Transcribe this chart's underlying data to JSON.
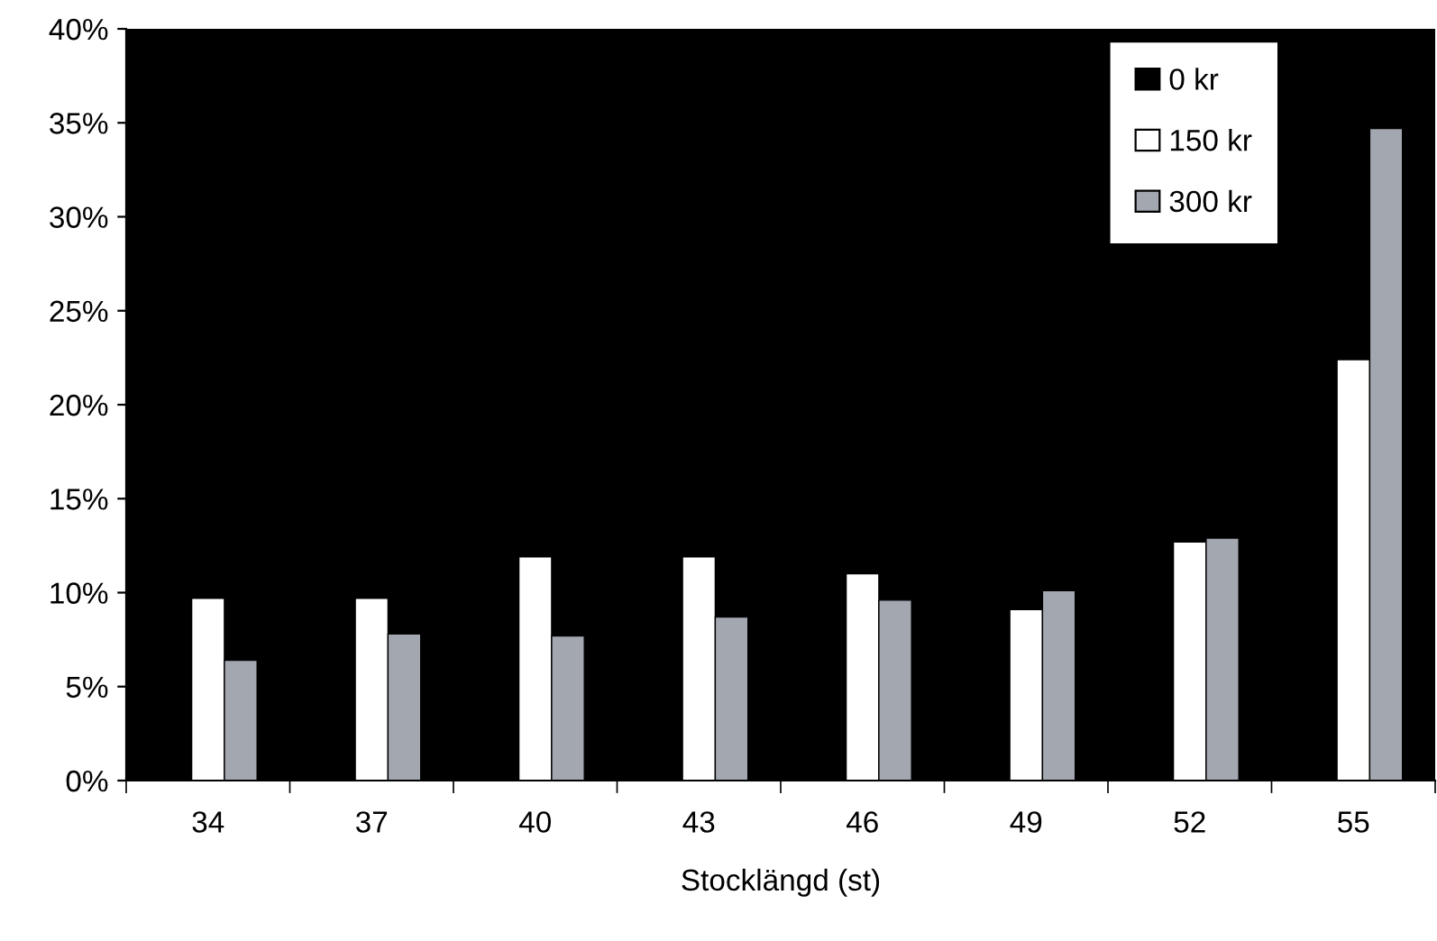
{
  "chart_data": {
    "type": "bar",
    "xlabel": "Stocklängd (st)",
    "categories": [
      "34",
      "37",
      "40",
      "43",
      "46",
      "49",
      "52",
      "55"
    ],
    "series": [
      {
        "name": "0 kr",
        "color": "#000000",
        "values": [
          null,
          null,
          null,
          null,
          null,
          null,
          null,
          null
        ]
      },
      {
        "name": "150 kr",
        "color": "#ffffff",
        "values": [
          9.7,
          9.7,
          11.9,
          11.9,
          11.0,
          9.1,
          12.7,
          22.4
        ]
      },
      {
        "name": "300 kr",
        "color": "#a3a7b0",
        "values": [
          6.4,
          7.8,
          7.7,
          8.7,
          9.6,
          10.1,
          12.9,
          34.7
        ]
      }
    ],
    "ylim": [
      0,
      40
    ],
    "yticks": [
      {
        "value": 0,
        "label": "0%"
      },
      {
        "value": 5,
        "label": "5%"
      },
      {
        "value": 10,
        "label": "10%"
      },
      {
        "value": 15,
        "label": "15%"
      },
      {
        "value": 20,
        "label": "20%"
      },
      {
        "value": 25,
        "label": "25%"
      },
      {
        "value": 30,
        "label": "30%"
      },
      {
        "value": 35,
        "label": "35%"
      },
      {
        "value": 40,
        "label": "40%"
      }
    ],
    "grid": false,
    "legend": "top right"
  }
}
